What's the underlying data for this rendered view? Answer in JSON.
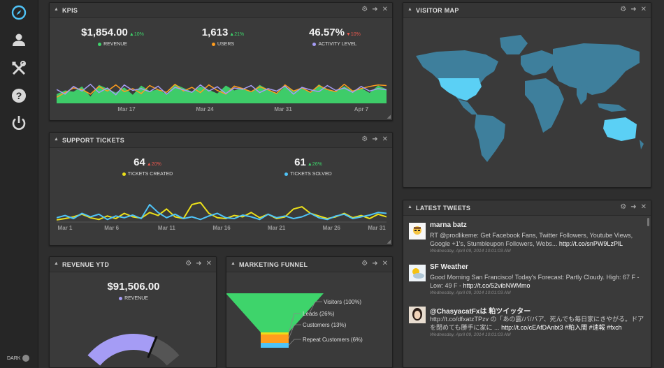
{
  "sidebar": {
    "items": [
      {
        "icon": "compass-icon",
        "color": "#4fc3f7"
      },
      {
        "icon": "user-icon",
        "color": "#d8d8d8"
      },
      {
        "icon": "tools-icon",
        "color": "#d8d8d8"
      },
      {
        "icon": "help-icon",
        "color": "#d8d8d8"
      },
      {
        "icon": "power-icon",
        "color": "#d8d8d8"
      }
    ],
    "dark_toggle_label": "DARK"
  },
  "colors": {
    "green": "#3ed46b",
    "orange": "#ff9d1e",
    "purple": "#a59cf5",
    "yellow": "#eadf1a",
    "cyan": "#4fc3f7",
    "map_land": "#3e7f9c",
    "map_highlight": "#5bd0f5"
  },
  "kpis": {
    "title": "KPIS",
    "metrics": [
      {
        "value": "$1,854.00",
        "change": "10%",
        "direction": "up",
        "label": "REVENUE",
        "color": "#3ed46b"
      },
      {
        "value": "1,613",
        "change": "21%",
        "direction": "up",
        "label": "USERS",
        "color": "#ff9d1e"
      },
      {
        "value": "46.57%",
        "change": "10%",
        "direction": "down",
        "label": "ACTIVITY LEVEL",
        "color": "#a59cf5"
      }
    ]
  },
  "support": {
    "title": "SUPPORT TICKETS",
    "metrics": [
      {
        "value": "64",
        "change": "20%",
        "direction": "down",
        "label": "TICKETS CREATED",
        "color": "#eadf1a"
      },
      {
        "value": "61",
        "change": "26%",
        "direction": "up",
        "label": "TICKETS SOLVED",
        "color": "#4fc3f7"
      }
    ]
  },
  "revenue_ytd": {
    "title": "REVENUE YTD",
    "value": "$91,506.00",
    "label": "REVENUE"
  },
  "funnel": {
    "title": "MARKETING FUNNEL"
  },
  "visitor_map": {
    "title": "VISITOR MAP"
  },
  "tweets_panel": {
    "title": "LATEST TWEETS",
    "tweets": [
      {
        "name": "marna batz",
        "text": "RT @prodlikeme: Get Facebook Fans, Twitter Followers, Youtube Views, Google +1's, Stumbleupon Followers, Webs... ",
        "link": "http://t.co/snPW9LzPlL",
        "time": "Wednesday, April 09, 2014 10:01:03 AM"
      },
      {
        "name": "SF Weather",
        "text": "Good Morning San Francisco! Today's Forecast: Partly Cloudy. High: 67 F - Low: 49 F - ",
        "link": "http://t.co/52vibNWMmo",
        "time": "Wednesday, April 09, 2014 10:01:03 AM"
      },
      {
        "name": "@ChasyacatFxは 粕ツイッター",
        "text": "http://t.co/dfxatzTPzv の「あの露/バ/バア、死んでも毎日家にきやがる。ドアを閉めても勝手に家に ... ",
        "link": "http://t.co/cEAfDAnbt3 #粕入間 #速報 #fxch",
        "time": "Wednesday, April 09, 2014 10:01:03 AM"
      }
    ]
  },
  "chart_data": [
    {
      "type": "area",
      "title": "KPIS",
      "x": [
        1,
        2,
        3,
        4,
        5,
        6,
        7,
        8,
        9,
        10,
        11,
        12,
        13,
        14,
        15,
        16,
        17,
        18,
        19,
        20,
        21,
        22,
        23,
        24,
        25,
        26,
        27,
        28,
        29,
        30,
        31,
        32,
        33,
        34,
        35,
        36,
        37,
        38,
        39,
        40
      ],
      "tick_labels": [
        "Mar 17",
        "Mar 24",
        "Mar 31",
        "Apr 7"
      ],
      "ylim": [
        0,
        100
      ],
      "series": [
        {
          "name": "REVENUE",
          "type": "area",
          "values": [
            30,
            42,
            38,
            55,
            22,
            60,
            48,
            35,
            52,
            28,
            58,
            40,
            45,
            30,
            62,
            50,
            38,
            55,
            44,
            32,
            58,
            42,
            50,
            36,
            60,
            45,
            30,
            55,
            40,
            48,
            35,
            62,
            44,
            38,
            56,
            40,
            50,
            34,
            58,
            46
          ]
        },
        {
          "name": "USERS",
          "type": "line",
          "values": [
            20,
            35,
            50,
            45,
            30,
            55,
            40,
            60,
            38,
            48,
            32,
            58,
            44,
            36,
            62,
            40,
            52,
            35,
            60,
            42,
            30,
            56,
            48,
            38,
            54,
            44,
            32,
            60,
            40,
            50,
            36,
            58,
            45,
            38,
            62,
            40,
            48,
            55,
            60,
            58
          ]
        },
        {
          "name": "ACTIVITY LEVEL",
          "type": "line",
          "values": [
            45,
            30,
            55,
            40,
            62,
            35,
            50,
            28,
            60,
            42,
            48,
            38,
            56,
            30,
            52,
            44,
            36,
            60,
            40,
            54,
            32,
            50,
            46,
            58,
            35,
            48,
            40,
            56,
            30,
            52,
            44,
            38,
            58,
            42,
            50,
            36,
            55,
            40,
            48,
            44
          ]
        }
      ]
    },
    {
      "type": "line",
      "title": "SUPPORT TICKETS",
      "x": [
        1,
        2,
        3,
        4,
        5,
        6,
        7,
        8,
        9,
        10,
        11,
        12,
        13,
        14,
        15,
        16,
        17,
        18,
        19,
        20,
        21,
        22,
        23,
        24,
        25,
        26,
        27,
        28,
        29,
        30,
        31,
        32,
        33,
        34,
        35,
        36,
        37,
        38,
        39,
        40
      ],
      "tick_labels": [
        "Mar 1",
        "Mar 6",
        "Mar 11",
        "Mar 16",
        "Mar 21",
        "Mar 26",
        "Mar 31"
      ],
      "ylim": [
        0,
        80
      ],
      "series": [
        {
          "name": "TICKETS CREATED",
          "values": [
            5,
            8,
            12,
            18,
            10,
            6,
            14,
            8,
            20,
            12,
            9,
            22,
            15,
            30,
            12,
            8,
            40,
            45,
            20,
            10,
            8,
            15,
            12,
            22,
            10,
            18,
            8,
            12,
            30,
            35,
            20,
            14,
            8,
            12,
            20,
            10,
            15,
            8,
            18,
            12
          ]
        },
        {
          "name": "TICKETS SOLVED",
          "values": [
            10,
            15,
            8,
            20,
            12,
            18,
            6,
            14,
            10,
            16,
            8,
            40,
            22,
            10,
            18,
            8,
            12,
            6,
            14,
            20,
            10,
            8,
            16,
            12,
            6,
            18,
            10,
            14,
            8,
            12,
            20,
            10,
            6,
            14,
            18,
            8,
            12,
            16,
            22,
            20
          ]
        }
      ]
    },
    {
      "type": "gauge",
      "title": "REVENUE YTD",
      "value": 91506.0,
      "value_fraction": 0.72
    },
    {
      "type": "funnel",
      "title": "MARKETING FUNNEL",
      "categories": [
        "Visitors (100%)",
        "Leads (26%)",
        "Customers (13%)",
        "Repeat Customers (6%)"
      ],
      "values": [
        100,
        26,
        13,
        6
      ]
    }
  ]
}
